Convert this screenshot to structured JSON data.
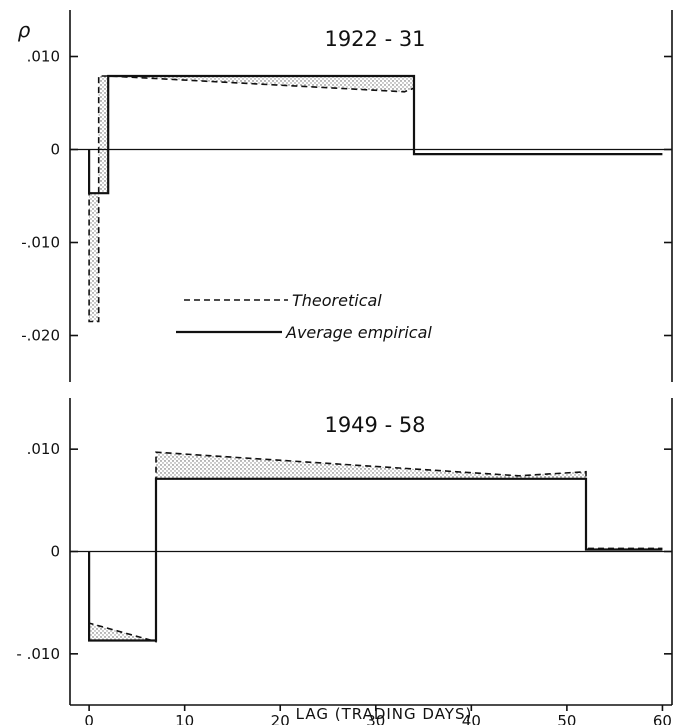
{
  "chart_data": [
    {
      "type": "line",
      "title": "1922 - 31",
      "ylabel": "ρ",
      "xlabel": "",
      "xlim": [
        -2,
        61
      ],
      "ylim": [
        -0.025,
        0.015
      ],
      "x_ticks": [
        0,
        10,
        20,
        30,
        40,
        50,
        60
      ],
      "y_ticks": [
        0.01,
        0,
        -0.01,
        -0.02
      ],
      "y_tick_labels": [
        ".010",
        "0",
        "-.010",
        "-.020"
      ],
      "grid": false,
      "legend_position": "center-left",
      "series": [
        {
          "name": "Theoretical",
          "style": "dashed",
          "points": [
            [
              0,
              0
            ],
            [
              0,
              -0.0185
            ],
            [
              1,
              -0.0185
            ],
            [
              1,
              0.0079
            ],
            [
              2,
              0.0079
            ],
            [
              33,
              0.0062
            ],
            [
              34,
              0.0066
            ],
            [
              34,
              -0.0005
            ],
            [
              60,
              -0.0005
            ]
          ]
        },
        {
          "name": "Average empirical",
          "style": "solid",
          "points": [
            [
              0,
              0
            ],
            [
              0,
              -0.0047
            ],
            [
              2,
              -0.0047
            ],
            [
              2,
              0.0079
            ],
            [
              34,
              0.0079
            ],
            [
              34,
              -0.0005
            ],
            [
              60,
              -0.0005
            ]
          ]
        }
      ]
    },
    {
      "type": "line",
      "title": "1949 - 58",
      "ylabel": "",
      "xlabel": "LAG (TRADING DAYS)",
      "xlim": [
        -2,
        61
      ],
      "ylim": [
        -0.015,
        0.015
      ],
      "x_ticks": [
        0,
        10,
        20,
        30,
        40,
        50,
        60
      ],
      "y_ticks": [
        0.01,
        0,
        -0.01
      ],
      "y_tick_labels": [
        ".010",
        "0",
        "- .010"
      ],
      "grid": false,
      "series": [
        {
          "name": "Theoretical",
          "style": "dashed",
          "points": [
            [
              0,
              0
            ],
            [
              0,
              -0.007
            ],
            [
              7,
              -0.0088
            ],
            [
              7,
              0.0097
            ],
            [
              45,
              0.0074
            ],
            [
              52,
              0.0078
            ],
            [
              52,
              0.0003
            ],
            [
              60,
              0.0003
            ]
          ]
        },
        {
          "name": "Average empirical",
          "style": "solid",
          "points": [
            [
              0,
              0
            ],
            [
              0,
              -0.0087
            ],
            [
              7,
              -0.0087
            ],
            [
              7,
              0.0071
            ],
            [
              52,
              0.0071
            ],
            [
              52,
              0.0002
            ],
            [
              60,
              0.0002
            ]
          ]
        }
      ]
    }
  ]
}
